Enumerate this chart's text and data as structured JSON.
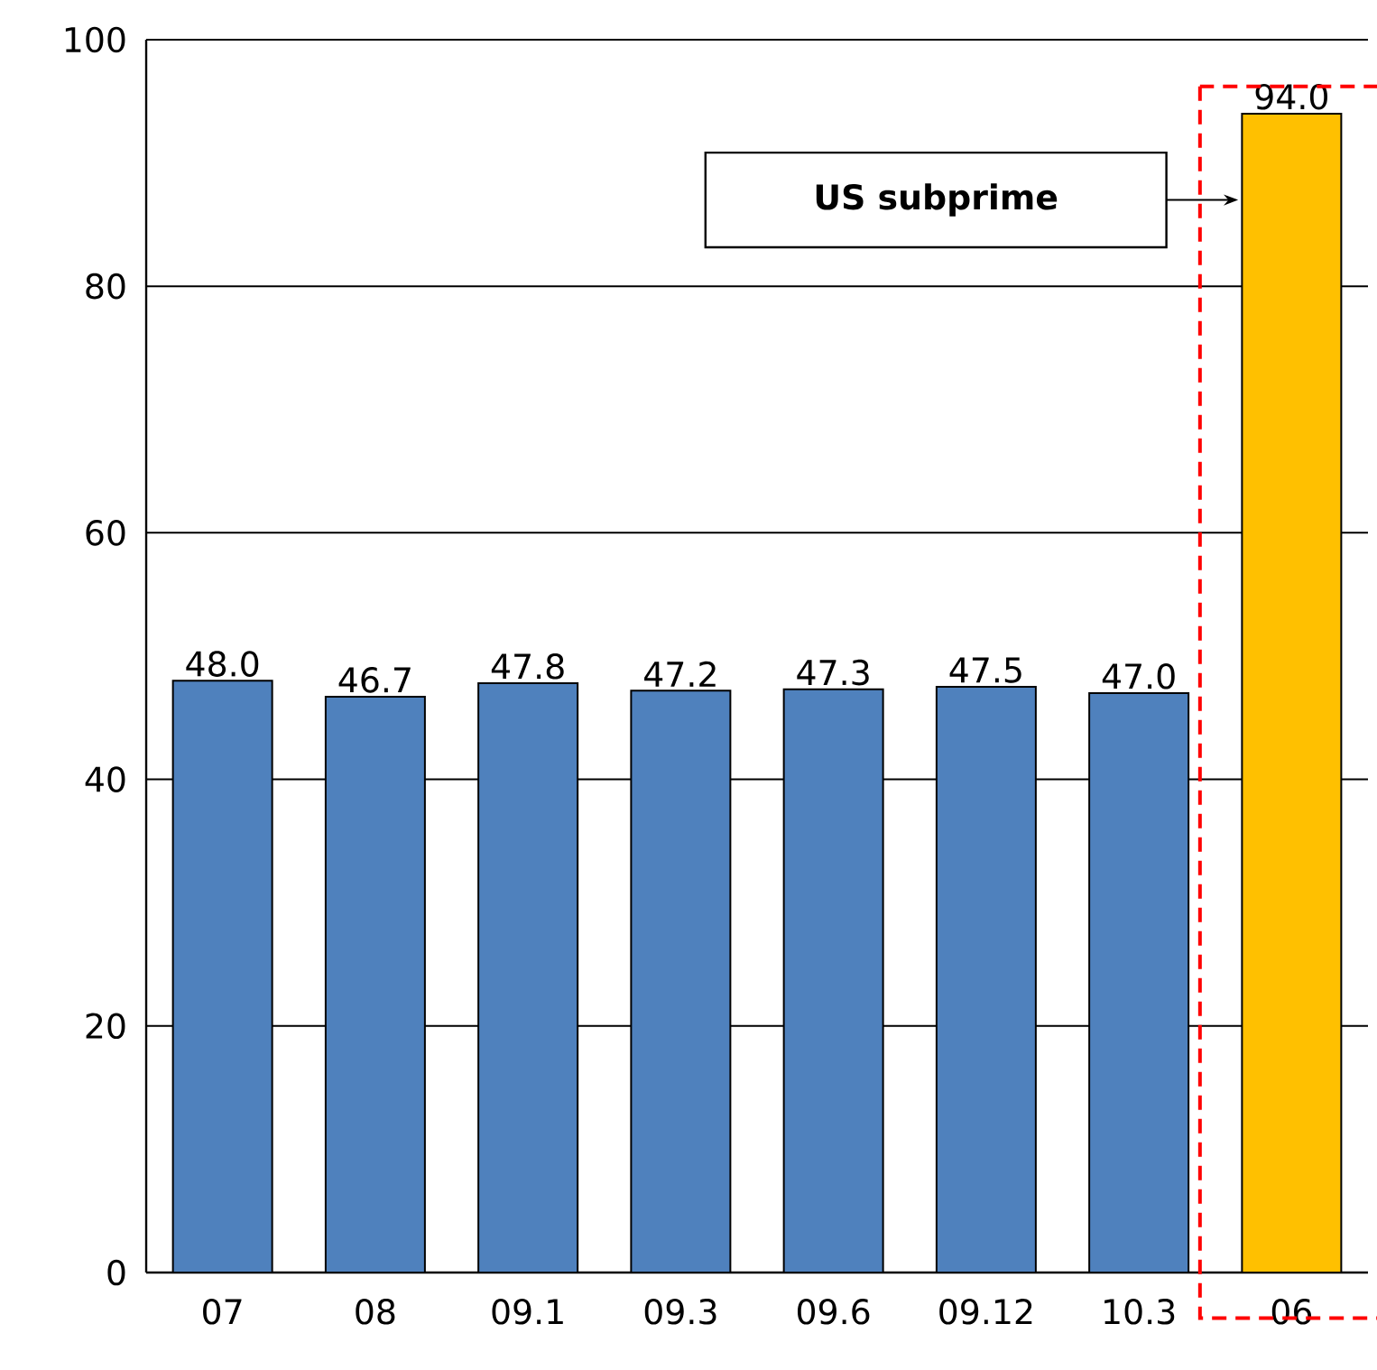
{
  "chart_data": {
    "type": "bar",
    "categories": [
      "07",
      "08",
      "09.1",
      "09.3",
      "09.6",
      "09.12",
      "10.3",
      "06"
    ],
    "values": [
      48.0,
      46.7,
      47.8,
      47.2,
      47.3,
      47.5,
      47.0,
      94.0
    ],
    "colors": [
      "#4f81bd",
      "#4f81bd",
      "#4f81bd",
      "#4f81bd",
      "#4f81bd",
      "#4f81bd",
      "#4f81bd",
      "#ffc000"
    ],
    "value_labels": [
      "48.0",
      "46.7",
      "47.8",
      "47.2",
      "47.3",
      "47.5",
      "47.0",
      "94.0"
    ],
    "ylim": [
      0,
      100
    ],
    "yticks": [
      0,
      20,
      40,
      60,
      80,
      100
    ],
    "grid": "y",
    "annotations": [
      "US subprime"
    ]
  }
}
